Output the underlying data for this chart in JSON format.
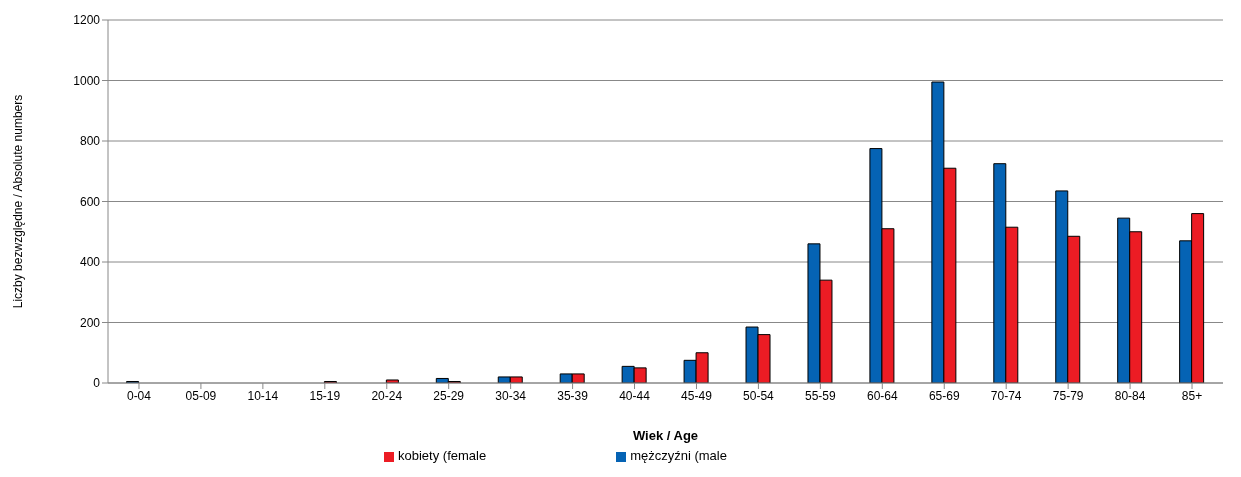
{
  "chart_data": {
    "type": "bar",
    "xlabel": "Wiek / Age",
    "ylabel": "Liczby bezwzględne / Absolute numbers",
    "categories": [
      "0-04",
      "05-09",
      "10-14",
      "15-19",
      "20-24",
      "25-29",
      "30-34",
      "35-39",
      "40-44",
      "45-49",
      "50-54",
      "55-59",
      "60-64",
      "65-69",
      "70-74",
      "75-79",
      "80-84",
      "85+"
    ],
    "series": [
      {
        "name": "mężczyźni (male",
        "color": "#0563b4",
        "values": [
          5,
          null,
          0,
          null,
          null,
          15,
          20,
          30,
          55,
          75,
          185,
          460,
          775,
          995,
          725,
          635,
          545,
          470
        ]
      },
      {
        "name": "kobiety (female",
        "color": "#ec1c24",
        "values": [
          null,
          0,
          null,
          5,
          10,
          5,
          20,
          30,
          50,
          100,
          160,
          340,
          510,
          710,
          515,
          485,
          500,
          560
        ]
      }
    ],
    "ylim": [
      0,
      1200
    ],
    "yticks": [
      0,
      200,
      400,
      600,
      800,
      1000,
      1200
    ],
    "grid": "y",
    "legend": "bottom"
  }
}
